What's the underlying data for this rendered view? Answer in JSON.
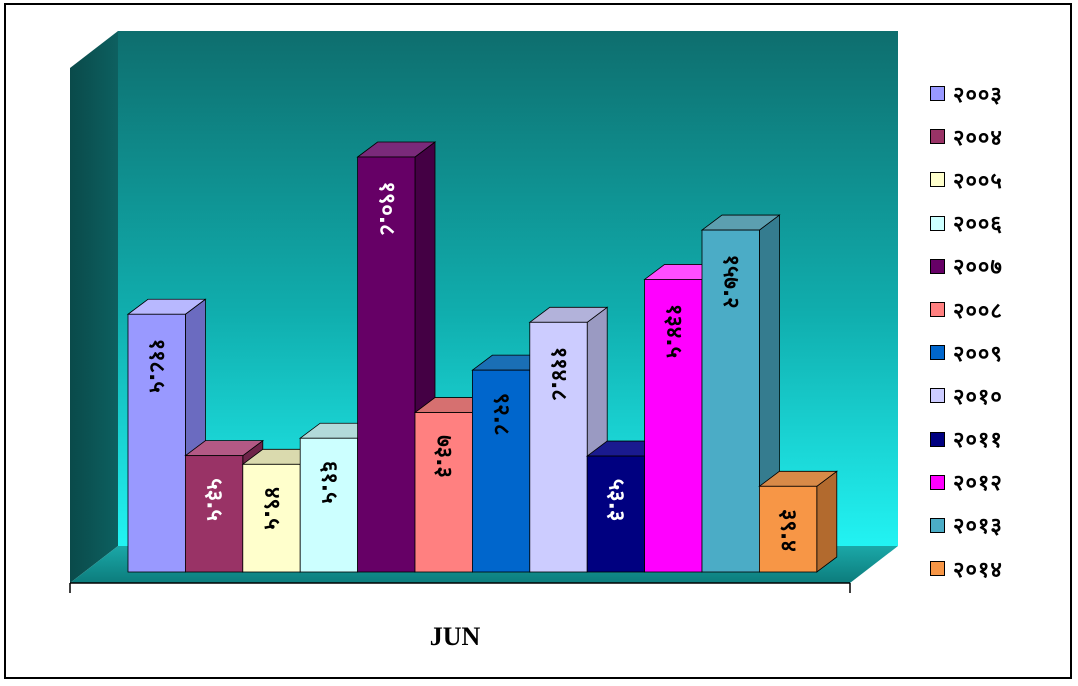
{
  "chart_data": {
    "type": "bar",
    "style": "3d-clustered-column",
    "categories": [
      "JUN"
    ],
    "xlabel": "JUN",
    "ylim": [
      0,
      220
    ],
    "grid": false,
    "legend_position": "right",
    "series": [
      {
        "name": "२००३",
        "value": 118.5,
        "label": "११८.५",
        "color": "#9999FF",
        "side_color": "#6B6BC0",
        "top_color": "#B8B8FF"
      },
      {
        "name": "२००४",
        "value": 53.5,
        "label": "५३.५",
        "color": "#993366",
        "side_color": "#6E2449",
        "top_color": "#B35985"
      },
      {
        "name": "२००५",
        "value": 49.5,
        "label": "४९.५",
        "color": "#FFFFCC",
        "side_color": "#C2C29A",
        "top_color": "#DADAAE"
      },
      {
        "name": "२००६",
        "value": 61.5,
        "label": "६१.५",
        "color": "#CCFFFF",
        "side_color": "#9AC2C2",
        "top_color": "#B2DADA"
      },
      {
        "name": "२००७",
        "value": 190.8,
        "label": "१९०.८",
        "color": "#660066",
        "side_color": "#440044",
        "top_color": "#7A2A7A"
      },
      {
        "name": "२००८",
        "value": 73.3,
        "label": "७३.३",
        "color": "#FF8080",
        "side_color": "#C25A5A",
        "top_color": "#D67070"
      },
      {
        "name": "२००९",
        "value": 92.8,
        "label": "९२.८",
        "color": "#0066CC",
        "side_color": "#004A94",
        "top_color": "#1A6FB5"
      },
      {
        "name": "२०१०",
        "value": 114.8,
        "label": "११४.८",
        "color": "#CCCCFF",
        "side_color": "#9A9AC2",
        "top_color": "#B2B2DA"
      },
      {
        "name": "२०११",
        "value": 53.3,
        "label": "५३.३",
        "color": "#000080",
        "side_color": "#000055",
        "top_color": "#1A1A8F"
      },
      {
        "name": "२०१२",
        "value": 134.5,
        "label": "१३४.५",
        "color": "#FF00FF",
        "side_color": "#B800B8",
        "top_color": "#FF4DFF"
      },
      {
        "name": "२०१३",
        "value": 157.2,
        "label": "१५७.२",
        "color": "#4BACC6",
        "side_color": "#357C8F",
        "top_color": "#5C9FB0"
      },
      {
        "name": "२०१४",
        "value": 39.4,
        "label": "३९.४",
        "color": "#F79646",
        "side_color": "#B26A2E",
        "top_color": "#D88A48"
      }
    ]
  }
}
